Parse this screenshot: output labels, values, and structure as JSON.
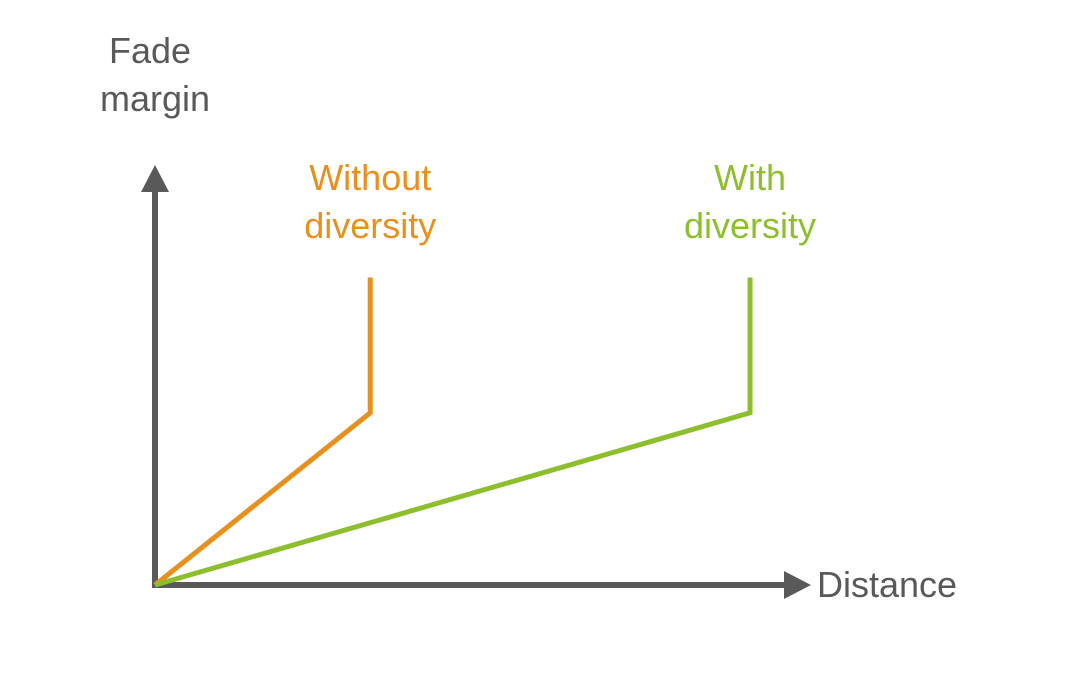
{
  "chart_data": {
    "type": "line",
    "title": "",
    "ylabel": [
      "Fade",
      "margin"
    ],
    "xlabel": "Distance",
    "grid": false,
    "legend": "none",
    "axis_color": "#595959",
    "series": [
      {
        "name": [
          "Without",
          "diversity"
        ],
        "color": "#E8901E",
        "points": [
          [
            0,
            0
          ],
          [
            0.34,
            0.42
          ],
          [
            0.34,
            0.75
          ]
        ]
      },
      {
        "name": [
          "With",
          "diversity"
        ],
        "color": "#8DBE2D",
        "points": [
          [
            0,
            0
          ],
          [
            0.94,
            0.42
          ],
          [
            0.94,
            0.75
          ]
        ]
      }
    ]
  }
}
